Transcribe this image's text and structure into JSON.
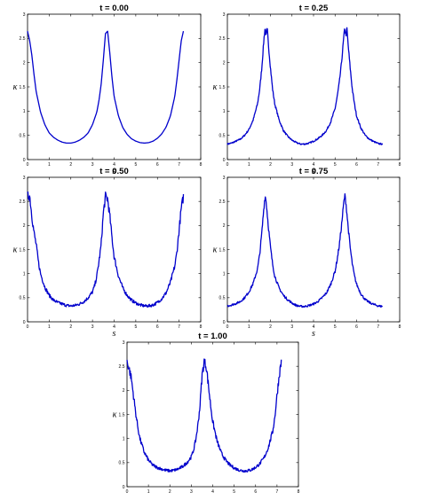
{
  "chart_data": [
    {
      "type": "line",
      "title": "t = 0.00",
      "xlabel": "s",
      "ylabel": "κ",
      "xlim": [
        0,
        8
      ],
      "ylim": [
        0,
        3
      ],
      "xticks": [
        "0",
        "1",
        "2",
        "3",
        "4",
        "5",
        "6",
        "7",
        "8"
      ],
      "yticks": [
        "0",
        "0.5",
        "1",
        "1.5",
        "2",
        "2.5",
        "3"
      ],
      "series": [
        {
          "color": "#0000cc",
          "noise": "none",
          "x": [
            0.0,
            0.1,
            0.2,
            0.3,
            0.4,
            0.6,
            0.8,
            1.0,
            1.2,
            1.4,
            1.6,
            1.8,
            2.0,
            2.2,
            2.4,
            2.6,
            2.8,
            3.0,
            3.2,
            3.3,
            3.4,
            3.5,
            3.6,
            3.7,
            3.8,
            3.9,
            4.0,
            4.2,
            4.4,
            4.6,
            4.8,
            5.0,
            5.2,
            5.4,
            5.6,
            5.8,
            6.0,
            6.2,
            6.4,
            6.6,
            6.8,
            6.9,
            7.0,
            7.1,
            7.2
          ],
          "y": [
            2.65,
            2.45,
            2.15,
            1.75,
            1.4,
            0.98,
            0.72,
            0.55,
            0.46,
            0.4,
            0.36,
            0.34,
            0.34,
            0.36,
            0.4,
            0.46,
            0.55,
            0.72,
            0.98,
            1.22,
            1.55,
            2.05,
            2.6,
            2.65,
            2.2,
            1.7,
            1.3,
            0.9,
            0.66,
            0.52,
            0.43,
            0.38,
            0.35,
            0.34,
            0.35,
            0.38,
            0.44,
            0.53,
            0.67,
            0.9,
            1.3,
            1.65,
            2.05,
            2.45,
            2.65
          ]
        }
      ]
    },
    {
      "type": "line",
      "title": "t = 0.25",
      "xlabel": "s",
      "ylabel": "κ",
      "xlim": [
        0,
        8
      ],
      "ylim": [
        0,
        3
      ],
      "xticks": [
        "0",
        "1",
        "2",
        "3",
        "4",
        "5",
        "6",
        "7",
        "8"
      ],
      "yticks": [
        "0",
        "0.5",
        "1",
        "1.5",
        "2",
        "2.5",
        "3"
      ],
      "series": [
        {
          "color": "#0000cc",
          "noise": "low",
          "x": [
            0.0,
            0.2,
            0.4,
            0.6,
            0.8,
            1.0,
            1.2,
            1.4,
            1.5,
            1.6,
            1.7,
            1.75,
            1.8,
            1.85,
            1.9,
            2.0,
            2.1,
            2.2,
            2.4,
            2.6,
            2.8,
            3.0,
            3.2,
            3.4,
            3.6,
            3.8,
            4.0,
            4.2,
            4.4,
            4.6,
            4.8,
            5.0,
            5.1,
            5.2,
            5.3,
            5.4,
            5.45,
            5.5,
            5.55,
            5.6,
            5.7,
            5.8,
            5.9,
            6.0,
            6.2,
            6.4,
            6.6,
            6.8,
            7.0,
            7.2
          ],
          "y": [
            0.32,
            0.34,
            0.38,
            0.42,
            0.5,
            0.62,
            0.82,
            1.15,
            1.45,
            1.9,
            2.5,
            2.72,
            2.55,
            2.7,
            2.4,
            1.9,
            1.45,
            1.15,
            0.82,
            0.6,
            0.48,
            0.4,
            0.35,
            0.32,
            0.32,
            0.34,
            0.38,
            0.43,
            0.5,
            0.6,
            0.78,
            1.05,
            1.3,
            1.6,
            2.0,
            2.5,
            2.72,
            2.55,
            2.7,
            2.4,
            1.9,
            1.45,
            1.15,
            0.9,
            0.65,
            0.5,
            0.42,
            0.37,
            0.33,
            0.32
          ]
        }
      ]
    },
    {
      "type": "line",
      "title": "t = 0.50",
      "xlabel": "s",
      "ylabel": "κ",
      "xlim": [
        0,
        8
      ],
      "ylim": [
        0,
        3
      ],
      "xticks": [
        "0",
        "1",
        "2",
        "3",
        "4",
        "5",
        "6",
        "7",
        "8"
      ],
      "yticks": [
        "0",
        "0.5",
        "1",
        "1.5",
        "2",
        "2.5",
        "3"
      ],
      "series": [
        {
          "color": "#0000cc",
          "noise": "high",
          "x": [
            0.0,
            0.1,
            0.2,
            0.3,
            0.4,
            0.5,
            0.6,
            0.8,
            1.0,
            1.2,
            1.4,
            1.6,
            1.8,
            2.0,
            2.2,
            2.4,
            2.6,
            2.8,
            3.0,
            3.1,
            3.2,
            3.3,
            3.4,
            3.5,
            3.6,
            3.7,
            3.8,
            3.9,
            4.0,
            4.2,
            4.4,
            4.6,
            4.8,
            5.0,
            5.2,
            5.4,
            5.6,
            5.8,
            6.0,
            6.2,
            6.4,
            6.6,
            6.8,
            6.9,
            7.0,
            7.1,
            7.2
          ],
          "y": [
            2.6,
            2.62,
            2.2,
            1.85,
            1.6,
            1.25,
            1.0,
            0.72,
            0.55,
            0.45,
            0.4,
            0.37,
            0.34,
            0.33,
            0.34,
            0.37,
            0.42,
            0.5,
            0.62,
            0.75,
            0.95,
            1.25,
            1.6,
            2.25,
            2.6,
            2.55,
            2.2,
            1.75,
            1.35,
            0.95,
            0.7,
            0.55,
            0.45,
            0.39,
            0.35,
            0.33,
            0.33,
            0.35,
            0.4,
            0.48,
            0.6,
            0.82,
            1.15,
            1.45,
            1.9,
            2.35,
            2.6
          ]
        }
      ]
    },
    {
      "type": "line",
      "title": "t = 0.75",
      "xlabel": "s",
      "ylabel": "κ",
      "xlim": [
        0,
        8
      ],
      "ylim": [
        0,
        3
      ],
      "xticks": [
        "0",
        "1",
        "2",
        "3",
        "4",
        "5",
        "6",
        "7",
        "8"
      ],
      "yticks": [
        "0",
        "0.5",
        "1",
        "1.5",
        "2",
        "2.5",
        "3"
      ],
      "series": [
        {
          "color": "#0000cc",
          "noise": "medium",
          "x": [
            0.0,
            0.2,
            0.4,
            0.6,
            0.8,
            1.0,
            1.2,
            1.4,
            1.5,
            1.6,
            1.7,
            1.75,
            1.8,
            1.9,
            2.0,
            2.1,
            2.2,
            2.4,
            2.6,
            2.8,
            3.0,
            3.2,
            3.4,
            3.6,
            3.8,
            4.0,
            4.2,
            4.4,
            4.6,
            4.8,
            5.0,
            5.1,
            5.2,
            5.3,
            5.4,
            5.45,
            5.5,
            5.6,
            5.7,
            5.8,
            5.9,
            6.0,
            6.2,
            6.4,
            6.6,
            6.8,
            7.0,
            7.2
          ],
          "y": [
            0.33,
            0.35,
            0.38,
            0.42,
            0.5,
            0.62,
            0.8,
            1.1,
            1.4,
            1.85,
            2.4,
            2.62,
            2.5,
            2.0,
            1.55,
            1.2,
            0.95,
            0.7,
            0.55,
            0.46,
            0.39,
            0.34,
            0.32,
            0.32,
            0.34,
            0.37,
            0.42,
            0.5,
            0.6,
            0.78,
            1.05,
            1.3,
            1.6,
            2.0,
            2.45,
            2.62,
            2.5,
            2.0,
            1.55,
            1.2,
            0.95,
            0.78,
            0.58,
            0.46,
            0.4,
            0.36,
            0.33,
            0.32
          ]
        }
      ]
    },
    {
      "type": "line",
      "title": "t = 1.00",
      "xlabel": "s",
      "ylabel": "κ",
      "xlim": [
        0,
        8
      ],
      "ylim": [
        0,
        3
      ],
      "xticks": [
        "0",
        "1",
        "2",
        "3",
        "4",
        "5",
        "6",
        "7",
        "8"
      ],
      "yticks": [
        "0",
        "0.5",
        "1",
        "1.5",
        "2",
        "2.5",
        "3"
      ],
      "series": [
        {
          "color": "#0000cc",
          "noise": "high",
          "x": [
            0.0,
            0.1,
            0.2,
            0.3,
            0.4,
            0.5,
            0.6,
            0.8,
            1.0,
            1.2,
            1.4,
            1.6,
            1.8,
            2.0,
            2.2,
            2.4,
            2.6,
            2.8,
            3.0,
            3.1,
            3.2,
            3.3,
            3.4,
            3.5,
            3.6,
            3.7,
            3.8,
            3.9,
            4.0,
            4.2,
            4.4,
            4.6,
            4.8,
            5.0,
            5.2,
            5.4,
            5.6,
            5.8,
            6.0,
            6.2,
            6.4,
            6.6,
            6.8,
            6.9,
            7.0,
            7.1,
            7.2
          ],
          "y": [
            2.6,
            2.45,
            2.25,
            1.9,
            1.55,
            1.25,
            1.0,
            0.72,
            0.55,
            0.45,
            0.4,
            0.37,
            0.34,
            0.33,
            0.34,
            0.37,
            0.42,
            0.5,
            0.62,
            0.75,
            0.95,
            1.25,
            1.65,
            2.3,
            2.6,
            2.5,
            2.1,
            1.7,
            1.35,
            0.95,
            0.7,
            0.55,
            0.45,
            0.39,
            0.35,
            0.33,
            0.33,
            0.35,
            0.4,
            0.48,
            0.6,
            0.82,
            1.15,
            1.45,
            1.9,
            2.3,
            2.6
          ]
        }
      ]
    }
  ]
}
